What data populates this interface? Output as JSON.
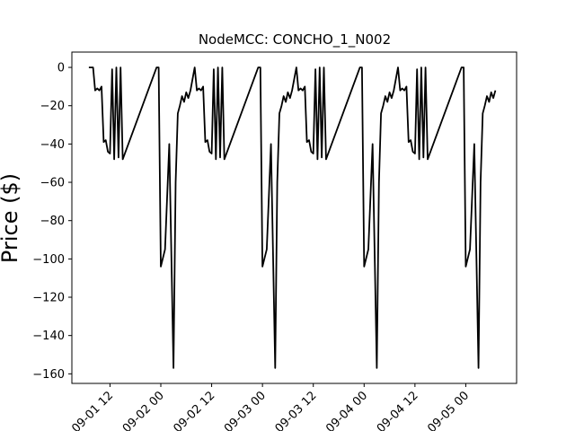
{
  "chart_data": {
    "type": "line",
    "title": "NodeMCC: CONCHO_1_N002",
    "xlabel": "",
    "ylabel": "Price ($)",
    "ylim": [
      -165,
      8
    ],
    "yticks": [
      0,
      -20,
      -40,
      -60,
      -80,
      -100,
      -120,
      -140,
      -160
    ],
    "xlim": [
      "2016-09-01 03:00",
      "2016-09-05 12:00"
    ],
    "xticks": [
      "2016-09-01 12:00",
      "2016-09-02 00:00",
      "2016-09-02 12:00",
      "2016-09-03 00:00",
      "2016-09-03 12:00",
      "2016-09-04 00:00",
      "2016-09-04 12:00",
      "2016-09-05 00:00"
    ],
    "xtick_labels": [
      "09-01 12",
      "09-02 00",
      "09-02 12",
      "09-03 00",
      "09-03 12",
      "09-04 00",
      "09-04 12",
      "09-05 00"
    ],
    "grid": false,
    "line_color": "#000000",
    "series": [
      {
        "x": [
          "2016-09-01 07:00",
          "2016-09-01 08:00",
          "2016-09-01 08:30",
          "2016-09-01 09:00",
          "2016-09-01 09:30",
          "2016-09-01 10:00",
          "2016-09-01 10:30",
          "2016-09-01 11:00",
          "2016-09-01 11:30",
          "2016-09-01 12:00",
          "2016-09-01 12:30",
          "2016-09-01 13:00",
          "2016-09-01 13:30",
          "2016-09-01 14:00",
          "2016-09-01 14:30",
          "2016-09-01 15:00",
          "2016-09-01 23:00",
          "2016-09-01 23:30",
          "2016-09-02 00:00",
          "2016-09-02 01:00",
          "2016-09-02 02:00",
          "2016-09-02 03:00",
          "2016-09-02 03:30",
          "2016-09-02 04:00",
          "2016-09-02 04:30",
          "2016-09-02 05:00",
          "2016-09-02 05:30",
          "2016-09-02 06:00",
          "2016-09-02 06:30",
          "2016-09-02 07:00",
          "2016-09-02 08:00",
          "2016-09-02 08:30",
          "2016-09-02 09:00",
          "2016-09-02 09:30",
          "2016-09-02 10:00",
          "2016-09-02 10:30",
          "2016-09-02 11:00",
          "2016-09-02 11:30",
          "2016-09-02 12:00",
          "2016-09-02 12:30",
          "2016-09-02 13:00",
          "2016-09-02 13:30",
          "2016-09-02 14:00",
          "2016-09-02 14:30",
          "2016-09-02 15:00",
          "2016-09-02 23:00",
          "2016-09-02 23:30",
          "2016-09-03 00:00",
          "2016-09-03 01:00",
          "2016-09-03 02:00",
          "2016-09-03 03:00",
          "2016-09-03 03:30",
          "2016-09-03 04:00",
          "2016-09-03 04:30",
          "2016-09-03 05:00",
          "2016-09-03 05:30",
          "2016-09-03 06:00",
          "2016-09-03 06:30",
          "2016-09-03 07:00",
          "2016-09-03 08:00",
          "2016-09-03 08:30",
          "2016-09-03 09:00",
          "2016-09-03 09:30",
          "2016-09-03 10:00",
          "2016-09-03 10:30",
          "2016-09-03 11:00",
          "2016-09-03 11:30",
          "2016-09-03 12:00",
          "2016-09-03 12:30",
          "2016-09-03 13:00",
          "2016-09-03 13:30",
          "2016-09-03 14:00",
          "2016-09-03 14:30",
          "2016-09-03 15:00",
          "2016-09-03 23:00",
          "2016-09-03 23:30",
          "2016-09-04 00:00",
          "2016-09-04 01:00",
          "2016-09-04 02:00",
          "2016-09-04 03:00",
          "2016-09-04 03:30",
          "2016-09-04 04:00",
          "2016-09-04 04:30",
          "2016-09-04 05:00",
          "2016-09-04 05:30",
          "2016-09-04 06:00",
          "2016-09-04 06:30",
          "2016-09-04 07:00",
          "2016-09-04 08:00",
          "2016-09-04 08:30",
          "2016-09-04 09:00",
          "2016-09-04 09:30",
          "2016-09-04 10:00",
          "2016-09-04 10:30",
          "2016-09-04 11:00",
          "2016-09-04 11:30",
          "2016-09-04 12:00",
          "2016-09-04 12:30",
          "2016-09-04 13:00",
          "2016-09-04 13:30",
          "2016-09-04 14:00",
          "2016-09-04 14:30",
          "2016-09-04 15:00",
          "2016-09-04 23:00",
          "2016-09-04 23:30",
          "2016-09-05 00:00",
          "2016-09-05 01:00",
          "2016-09-05 02:00",
          "2016-09-05 03:00",
          "2016-09-05 03:30",
          "2016-09-05 04:00",
          "2016-09-05 04:30",
          "2016-09-05 05:00",
          "2016-09-05 05:30",
          "2016-09-05 06:00",
          "2016-09-05 06:30",
          "2016-09-05 07:00"
        ],
        "y": [
          0,
          0,
          -12,
          -11,
          -12,
          -10,
          -39,
          -38,
          -44,
          -45,
          -1,
          -48,
          0,
          -47,
          0,
          -48,
          0,
          0,
          -104,
          -95,
          -40,
          -157,
          -60,
          -24,
          -20,
          -15,
          -18,
          -13,
          -16,
          -12,
          0,
          -12,
          -11,
          -12,
          -10,
          -39,
          -38,
          -44,
          -45,
          -1,
          -48,
          0,
          -47,
          0,
          -48,
          0,
          0,
          -104,
          -95,
          -40,
          -157,
          -60,
          -24,
          -20,
          -15,
          -18,
          -13,
          -16,
          -12,
          0,
          -12,
          -11,
          -12,
          -10,
          -39,
          -38,
          -44,
          -45,
          -1,
          -48,
          0,
          -47,
          0,
          -48,
          0,
          0,
          -104,
          -95,
          -40,
          -157,
          -60,
          -24,
          -20,
          -15,
          -18,
          -13,
          -16,
          -12,
          0,
          -12,
          -11,
          -12,
          -10,
          -39,
          -38,
          -44,
          -45,
          -1,
          -48,
          0,
          -47,
          0,
          -48,
          0,
          0,
          -104,
          -95,
          -40,
          -157,
          -60,
          -24,
          -20,
          -15,
          -18,
          -13,
          -16,
          -12
        ]
      }
    ]
  }
}
